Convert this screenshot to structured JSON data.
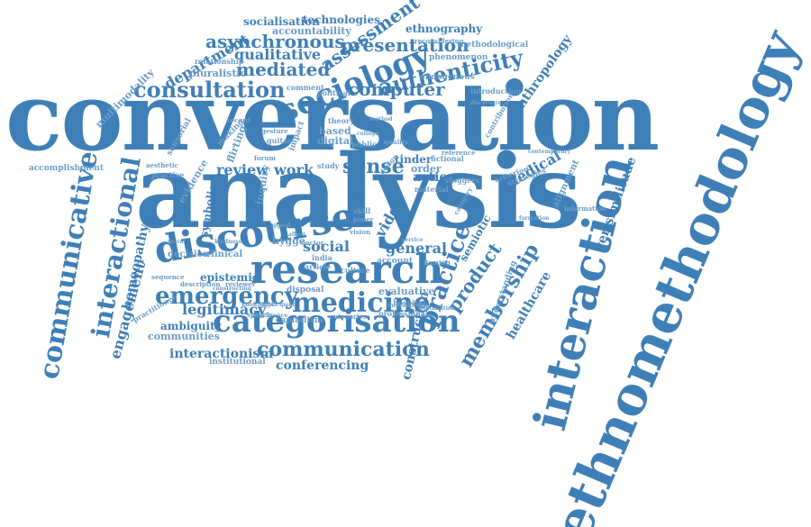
{
  "palette": {
    "word": "#3f7fb7",
    "word_light": "#6a9cc8",
    "background": "#ffffff"
  },
  "words": [
    "conversation",
    "analysis",
    "interaction",
    "ethnomethodology",
    "research",
    "discourse",
    "categorisation",
    "communicative",
    "interactional",
    "medicine",
    "emergency",
    "communication",
    "sociology",
    "consultation",
    "presentation",
    "authenticity",
    "assessment",
    "asynchronous",
    "mediated",
    "computer",
    "qualitative",
    "department",
    "socialisation",
    "technologies",
    "ethnography",
    "accountability",
    "methodological",
    "anthropology",
    "sense",
    "review",
    "work",
    "case",
    "video",
    "social",
    "general",
    "practice",
    "product",
    "membership",
    "healthcare",
    "verisimilitude",
    "engagement",
    "homeopathy",
    "legitimacy",
    "epistemic",
    "ambiguity",
    "communities",
    "interactionism",
    "institutional",
    "conferencing",
    "multimodality",
    "accomplishment",
    "medical",
    "construction",
    "understanding",
    "semiotic",
    "evidence",
    "pluralistic",
    "relationship",
    "phenomenon",
    "reconsidering",
    "endogenous",
    "introduction",
    "comment",
    "political",
    "study",
    "theory",
    "based",
    "digital",
    "tinder",
    "fictional",
    "action",
    "order",
    "flirting",
    "symbolic",
    "inquiry",
    "decision",
    "clinical",
    "evaluative",
    "account",
    "disposal",
    "capitalism",
    "hygge",
    "india",
    "article",
    "culture",
    "professional",
    "hospital",
    "practitioner",
    "description",
    "reviewer",
    "categories",
    "making",
    "sensorial",
    "impact",
    "gesture",
    "guitar",
    "forum",
    "material",
    "vloggers",
    "criterion",
    "strategies",
    "alignment",
    "information",
    "category",
    "flaming",
    "practise",
    "aesthetic",
    "sequence",
    "speech",
    "vision",
    "reference",
    "design",
    "quality",
    "method",
    "public",
    "college",
    "skill",
    "paper",
    "service",
    "legitimation",
    "formation",
    "constructing",
    "conference",
    "participant",
    "interactionist",
    "doctor",
    "knowledge",
    "kindness",
    "affect",
    "appeal",
    "moral",
    "record",
    "contribution",
    "disclosure",
    "contemporary"
  ]
}
